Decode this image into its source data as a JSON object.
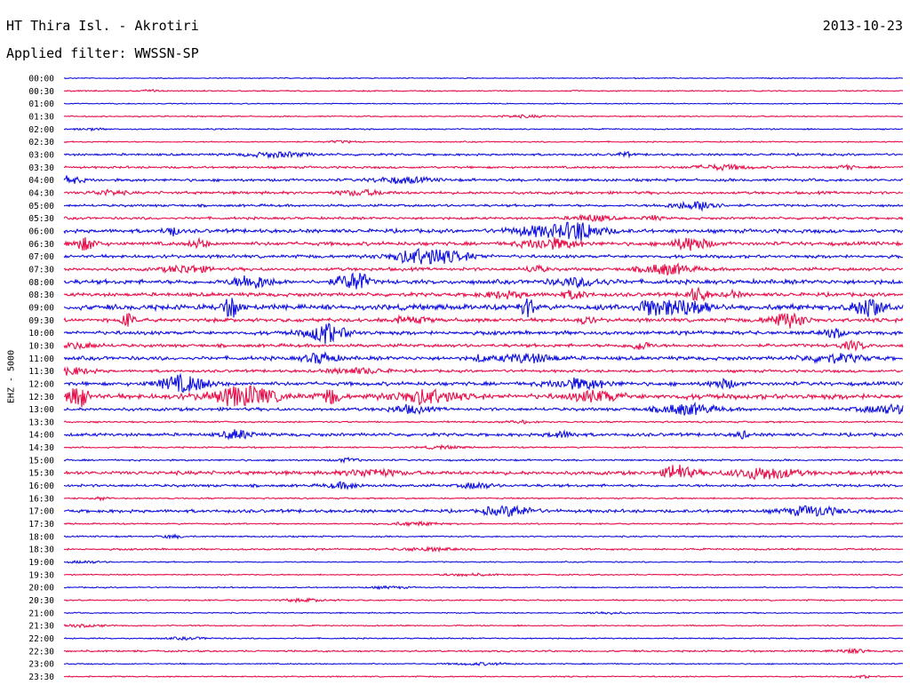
{
  "header": {
    "station": "HT Thira Isl. - Akrotiri",
    "date": "2013-10-23",
    "filter": "Applied filter: WWSSN-SP"
  },
  "axis": {
    "channel_label": "EHZ - 5000"
  },
  "colors": {
    "blue_trace": "#1010e0",
    "red_trace": "#e8104a",
    "background": "#ffffff"
  },
  "chart_data": {
    "type": "line",
    "title": "",
    "xlabel": "",
    "ylabel": "EHZ - 5000",
    "ylim": [
      "00:00",
      "23:30"
    ],
    "grid": false,
    "legend": "none",
    "series": [
      {
        "label": "00:00",
        "color": "#1010e0",
        "activity": 0.05
      },
      {
        "label": "00:30",
        "color": "#e8104a",
        "activity": 0.1
      },
      {
        "label": "01:00",
        "color": "#1010e0",
        "activity": 0.05
      },
      {
        "label": "01:30",
        "color": "#e8104a",
        "activity": 0.1
      },
      {
        "label": "02:00",
        "color": "#1010e0",
        "activity": 0.1
      },
      {
        "label": "02:30",
        "color": "#e8104a",
        "activity": 0.1
      },
      {
        "label": "03:00",
        "color": "#1010e0",
        "activity": 0.3
      },
      {
        "label": "03:30",
        "color": "#e8104a",
        "activity": 0.3
      },
      {
        "label": "04:00",
        "color": "#1010e0",
        "activity": 0.4
      },
      {
        "label": "04:30",
        "color": "#e8104a",
        "activity": 0.4
      },
      {
        "label": "05:00",
        "color": "#1010e0",
        "activity": 0.35
      },
      {
        "label": "05:30",
        "color": "#e8104a",
        "activity": 0.35
      },
      {
        "label": "06:00",
        "color": "#1010e0",
        "activity": 0.6
      },
      {
        "label": "06:30",
        "color": "#e8104a",
        "activity": 0.6
      },
      {
        "label": "07:00",
        "color": "#1010e0",
        "activity": 0.5
      },
      {
        "label": "07:30",
        "color": "#e8104a",
        "activity": 0.5
      },
      {
        "label": "08:00",
        "color": "#1010e0",
        "activity": 0.7
      },
      {
        "label": "08:30",
        "color": "#e8104a",
        "activity": 0.6
      },
      {
        "label": "09:00",
        "color": "#1010e0",
        "activity": 0.9
      },
      {
        "label": "09:30",
        "color": "#e8104a",
        "activity": 0.6
      },
      {
        "label": "10:00",
        "color": "#1010e0",
        "activity": 0.6
      },
      {
        "label": "10:30",
        "color": "#e8104a",
        "activity": 0.5
      },
      {
        "label": "11:00",
        "color": "#1010e0",
        "activity": 0.6
      },
      {
        "label": "11:30",
        "color": "#e8104a",
        "activity": 0.4
      },
      {
        "label": "12:00",
        "color": "#1010e0",
        "activity": 0.6
      },
      {
        "label": "12:30",
        "color": "#e8104a",
        "activity": 0.9
      },
      {
        "label": "13:00",
        "color": "#1010e0",
        "activity": 0.5
      },
      {
        "label": "13:30",
        "color": "#e8104a",
        "activity": 0.2
      },
      {
        "label": "14:00",
        "color": "#1010e0",
        "activity": 0.5
      },
      {
        "label": "14:30",
        "color": "#e8104a",
        "activity": 0.15
      },
      {
        "label": "15:00",
        "color": "#1010e0",
        "activity": 0.2
      },
      {
        "label": "15:30",
        "color": "#e8104a",
        "activity": 0.6
      },
      {
        "label": "16:00",
        "color": "#1010e0",
        "activity": 0.4
      },
      {
        "label": "16:30",
        "color": "#e8104a",
        "activity": 0.15
      },
      {
        "label": "17:00",
        "color": "#1010e0",
        "activity": 0.5
      },
      {
        "label": "17:30",
        "color": "#e8104a",
        "activity": 0.15
      },
      {
        "label": "18:00",
        "color": "#1010e0",
        "activity": 0.15
      },
      {
        "label": "18:30",
        "color": "#e8104a",
        "activity": 0.2
      },
      {
        "label": "19:00",
        "color": "#1010e0",
        "activity": 0.1
      },
      {
        "label": "19:30",
        "color": "#e8104a",
        "activity": 0.1
      },
      {
        "label": "20:00",
        "color": "#1010e0",
        "activity": 0.1
      },
      {
        "label": "20:30",
        "color": "#e8104a",
        "activity": 0.15
      },
      {
        "label": "21:00",
        "color": "#1010e0",
        "activity": 0.1
      },
      {
        "label": "21:30",
        "color": "#e8104a",
        "activity": 0.1
      },
      {
        "label": "22:00",
        "color": "#1010e0",
        "activity": 0.1
      },
      {
        "label": "22:30",
        "color": "#e8104a",
        "activity": 0.2
      },
      {
        "label": "23:00",
        "color": "#1010e0",
        "activity": 0.1
      },
      {
        "label": "23:30",
        "color": "#e8104a",
        "activity": 0.1
      }
    ]
  }
}
